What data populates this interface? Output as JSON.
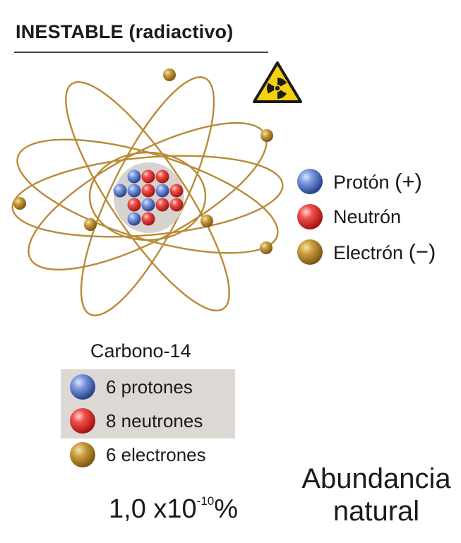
{
  "title": "INESTABLE (radiactivo)",
  "warning_icon": "radiation-warning-icon",
  "legend": [
    {
      "label": "Protón",
      "sign": "(+)",
      "particle": "proton"
    },
    {
      "label": "Neutrón",
      "sign": "",
      "particle": "neutron"
    },
    {
      "label": "Electrón",
      "sign": "(−)",
      "particle": "electron"
    }
  ],
  "element_name": "Carbono-14",
  "composition": [
    {
      "label": "6 protones",
      "particle": "proton"
    },
    {
      "label": "8 neutrones",
      "particle": "neutron"
    },
    {
      "label": "6 electrones",
      "particle": "electron"
    }
  ],
  "abundance": {
    "value": "1,0 x10",
    "exponent": "-10",
    "unit": "%",
    "label_line1": "Abundancia",
    "label_line2": "natural"
  },
  "colors": {
    "proton": "#3f64b8",
    "neutron": "#e0262a",
    "electron": "#b8862a",
    "orbit": "#b98a35",
    "nucleus_bg": "#d6d2cf",
    "box_bg": "#dcd8d4",
    "warning_yellow": "#f4d10c"
  }
}
